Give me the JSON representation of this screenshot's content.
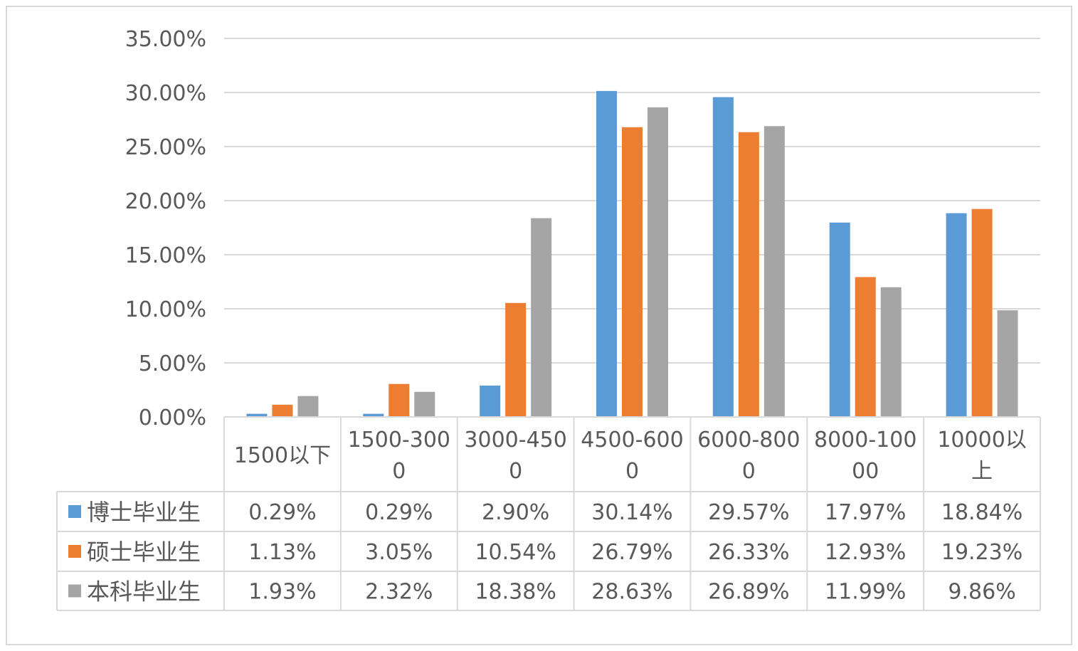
{
  "chart_data": {
    "type": "bar",
    "title": "",
    "xlabel": "",
    "ylabel": "",
    "ylim": [
      0,
      35
    ],
    "y_ticks": [
      "0.00%",
      "5.00%",
      "10.00%",
      "15.00%",
      "20.00%",
      "25.00%",
      "30.00%",
      "35.00%"
    ],
    "category_lines": [
      [
        "1500以下"
      ],
      [
        "1500-300",
        "0"
      ],
      [
        "3000-450",
        "0"
      ],
      [
        "4500-600",
        "0"
      ],
      [
        "6000-800",
        "0"
      ],
      [
        "8000-100",
        "00"
      ],
      [
        "10000以",
        "上"
      ]
    ],
    "categories": [
      "1500以下",
      "1500-3000",
      "3000-4500",
      "4500-6000",
      "6000-8000",
      "8000-10000",
      "10000以上"
    ],
    "grid": true,
    "legend": "data-table",
    "series": [
      {
        "name": "博士毕业生",
        "color": "#5b9bd5",
        "values": [
          0.29,
          0.29,
          2.9,
          30.14,
          29.57,
          17.97,
          18.84
        ],
        "labels": [
          "0.29%",
          "0.29%",
          "2.90%",
          "30.14%",
          "29.57%",
          "17.97%",
          "18.84%"
        ]
      },
      {
        "name": "硕士毕业生",
        "color": "#ed7d31",
        "values": [
          1.13,
          3.05,
          10.54,
          26.79,
          26.33,
          12.93,
          19.23
        ],
        "labels": [
          "1.13%",
          "3.05%",
          "10.54%",
          "26.79%",
          "26.33%",
          "12.93%",
          "19.23%"
        ]
      },
      {
        "name": "本科毕业生",
        "color": "#a5a5a5",
        "values": [
          1.93,
          2.32,
          18.38,
          28.63,
          26.89,
          11.99,
          9.86
        ],
        "labels": [
          "1.93%",
          "2.32%",
          "18.38%",
          "28.63%",
          "26.89%",
          "11.99%",
          "9.86%"
        ]
      }
    ]
  }
}
